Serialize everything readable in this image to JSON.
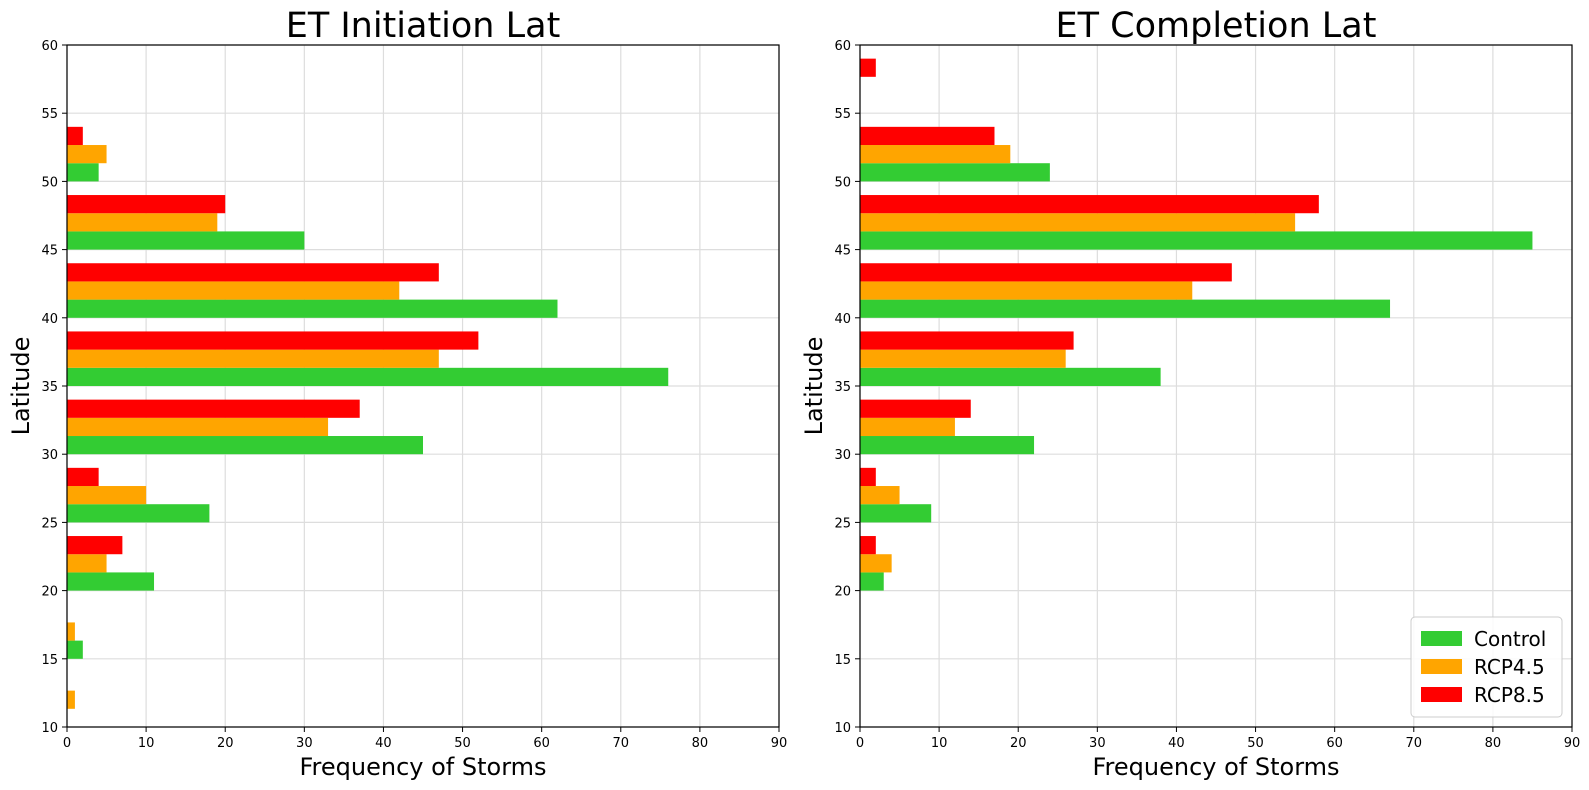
{
  "colors": {
    "Control": "#33cc33",
    "RCP4.5": "#ffa500",
    "RCP8.5": "#ff0000",
    "grid": "#dddddd",
    "axis": "#000000"
  },
  "chart_data": [
    {
      "type": "bar",
      "orientation": "horizontal",
      "title": "ET Initiation Lat",
      "xlabel": "Frequency of Storms",
      "ylabel": "Latitude",
      "xlim": [
        0,
        90
      ],
      "ylim": [
        10,
        60
      ],
      "xticks": [
        0,
        10,
        20,
        30,
        40,
        50,
        60,
        70,
        80,
        90
      ],
      "yticks": [
        10,
        15,
        20,
        25,
        30,
        35,
        40,
        45,
        50,
        55,
        60
      ],
      "grid": true,
      "bin_width": 5,
      "bins": [
        10,
        15,
        20,
        25,
        30,
        35,
        40,
        45,
        50,
        55
      ],
      "series": [
        {
          "name": "Control",
          "values": [
            0,
            2,
            11,
            18,
            45,
            76,
            62,
            30,
            4,
            0
          ]
        },
        {
          "name": "RCP4.5",
          "values": [
            1,
            1,
            5,
            10,
            33,
            47,
            42,
            19,
            5,
            0
          ]
        },
        {
          "name": "RCP8.5",
          "values": [
            0,
            0,
            7,
            4,
            37,
            52,
            47,
            20,
            2,
            0
          ]
        }
      ]
    },
    {
      "type": "bar",
      "orientation": "horizontal",
      "title": "ET Completion Lat",
      "xlabel": "Frequency of Storms",
      "ylabel": "Latitude",
      "xlim": [
        0,
        90
      ],
      "ylim": [
        10,
        60
      ],
      "xticks": [
        0,
        10,
        20,
        30,
        40,
        50,
        60,
        70,
        80,
        90
      ],
      "yticks": [
        10,
        15,
        20,
        25,
        30,
        35,
        40,
        45,
        50,
        55,
        60
      ],
      "grid": true,
      "legend": "lower-right",
      "bin_width": 5,
      "bins": [
        10,
        15,
        20,
        25,
        30,
        35,
        40,
        45,
        50,
        55
      ],
      "series": [
        {
          "name": "Control",
          "values": [
            0,
            0,
            3,
            9,
            22,
            38,
            67,
            85,
            24,
            0
          ]
        },
        {
          "name": "RCP4.5",
          "values": [
            0,
            0,
            4,
            5,
            12,
            26,
            42,
            55,
            19,
            0
          ]
        },
        {
          "name": "RCP8.5",
          "values": [
            0,
            0,
            2,
            2,
            14,
            27,
            47,
            58,
            17,
            2
          ]
        }
      ]
    }
  ]
}
